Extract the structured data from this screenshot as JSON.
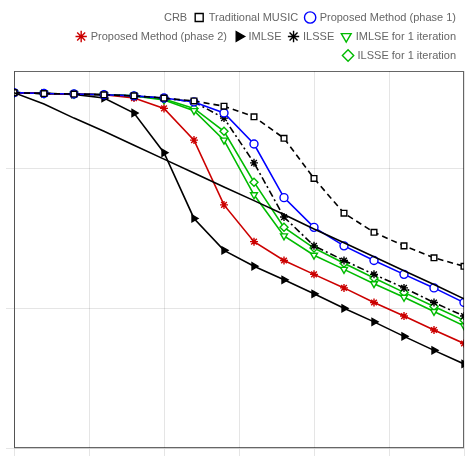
{
  "chart_data": {
    "type": "line",
    "x": [
      -10,
      -8,
      -6,
      -4,
      -2,
      0,
      2,
      4,
      6,
      8,
      10,
      12,
      14,
      16,
      18,
      20
    ],
    "series": [
      {
        "name": "CRB",
        "color": "#000000",
        "line_style": "solid",
        "marker": "none",
        "values": [
          3.5,
          2.9,
          2.3,
          1.85,
          1.47,
          1.17,
          0.93,
          0.74,
          0.59,
          0.47,
          0.37,
          0.295,
          0.234,
          0.186,
          0.148,
          0.117
        ]
      },
      {
        "name": "Traditional MUSIC",
        "color": "#000000",
        "line_style": "dashed",
        "marker": "square",
        "values": [
          3.5,
          3.45,
          3.42,
          3.38,
          3.32,
          3.2,
          3.05,
          2.8,
          2.35,
          1.65,
          0.85,
          0.48,
          0.35,
          0.28,
          0.23,
          0.2
        ]
      },
      {
        "name": "Proposed Method (phase 1)",
        "color": "#0000ff",
        "line_style": "solid",
        "marker": "circle",
        "values": [
          3.5,
          3.45,
          3.42,
          3.38,
          3.32,
          3.2,
          3.0,
          2.5,
          1.5,
          0.62,
          0.38,
          0.28,
          0.22,
          0.175,
          0.14,
          0.11
        ]
      },
      {
        "name": "Proposed Method (phase 2)",
        "color": "#cc0000",
        "line_style": "solid",
        "marker": "star",
        "values": [
          3.5,
          3.45,
          3.42,
          3.38,
          3.2,
          2.7,
          1.6,
          0.55,
          0.3,
          0.22,
          0.175,
          0.14,
          0.11,
          0.088,
          0.07,
          0.056
        ]
      },
      {
        "name": "IMLSE",
        "color": "#000000",
        "line_style": "solid",
        "marker": "triangle-right",
        "values": [
          3.5,
          3.45,
          3.4,
          3.2,
          2.5,
          1.3,
          0.44,
          0.26,
          0.2,
          0.16,
          0.127,
          0.1,
          0.08,
          0.063,
          0.05,
          0.04
        ]
      },
      {
        "name": "ILSSE",
        "color": "#000000",
        "line_style": "dashdot",
        "marker": "star",
        "values": [
          3.5,
          3.45,
          3.42,
          3.38,
          3.32,
          3.2,
          3.0,
          2.3,
          1.1,
          0.45,
          0.28,
          0.22,
          0.175,
          0.14,
          0.11,
          0.088
        ]
      },
      {
        "name": "IMLSE for 1 iteration",
        "color": "#00bb00",
        "line_style": "solid",
        "marker": "triangle-down",
        "values": [
          3.5,
          3.45,
          3.42,
          3.38,
          3.32,
          3.1,
          2.6,
          1.6,
          0.65,
          0.33,
          0.24,
          0.19,
          0.15,
          0.12,
          0.095,
          0.075
        ]
      },
      {
        "name": "ILSSE for 1 iteration",
        "color": "#00bb00",
        "line_style": "solid",
        "marker": "diamond",
        "values": [
          3.5,
          3.45,
          3.42,
          3.38,
          3.32,
          3.15,
          2.7,
          1.85,
          0.8,
          0.38,
          0.27,
          0.21,
          0.165,
          0.13,
          0.103,
          0.082
        ]
      }
    ],
    "xlim": [
      -10,
      20
    ],
    "xticks": [
      -10,
      -5,
      0,
      5,
      10,
      15,
      20
    ],
    "ylim": [
      0.01,
      5.0
    ],
    "yticks": [
      0.01,
      0.1,
      1
    ],
    "log": "y",
    "grid": true,
    "legend": "upper right",
    "tick_labels": false
  }
}
